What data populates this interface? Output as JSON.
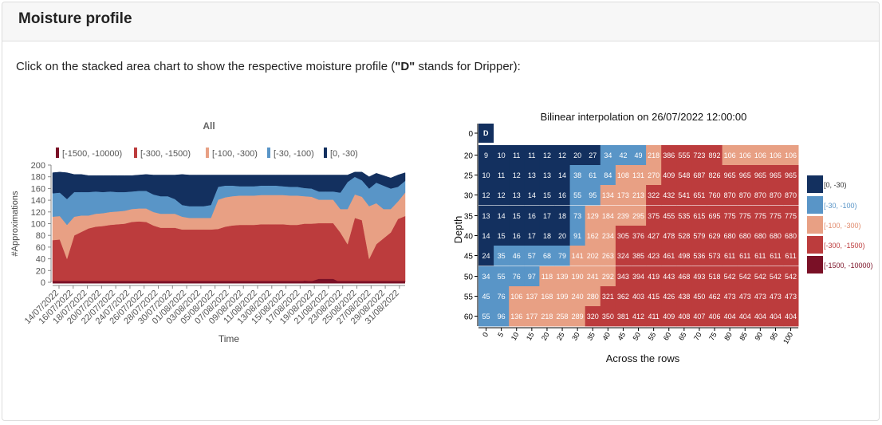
{
  "card": {
    "title": "Moisture profile",
    "instruction_before": "Click on the stacked area chart to show the respective moisture profile (",
    "instruction_bold": "\"D\"",
    "instruction_after": " stands for Dripper):"
  },
  "colors": {
    "c0": "#13305f",
    "c1": "#5995c7",
    "c2": "#e8a084",
    "c3": "#bc3c3d",
    "c4": "#7a1026"
  },
  "chart_data": [
    {
      "type": "area",
      "stacked": true,
      "title": "All",
      "xlabel": "Time",
      "ylabel": "#Approximations",
      "ylim": [
        0,
        200
      ],
      "yticks": [
        0,
        20,
        40,
        60,
        80,
        100,
        120,
        140,
        160,
        180,
        200
      ],
      "xticks": [
        "14/07/2022",
        "16/07/2022",
        "18/07/2022",
        "20/07/2022",
        "22/07/2022",
        "24/07/2022",
        "26/07/2022",
        "28/07/2022",
        "30/07/2022",
        "01/08/2022",
        "03/08/2022",
        "05/08/2022",
        "07/08/2022",
        "09/08/2022",
        "11/08/2022",
        "13/08/2022",
        "15/08/2022",
        "17/08/2022",
        "19/08/2022",
        "21/08/2022",
        "23/08/2022",
        "25/08/2022",
        "27/08/2022",
        "29/08/2022",
        "31/08/2022"
      ],
      "legend_placement": "top",
      "x": [
        "14/07",
        "15/07",
        "16/07",
        "17/07",
        "18/07",
        "19/07",
        "20/07",
        "21/07",
        "22/07",
        "23/07",
        "24/07",
        "25/07",
        "26/07",
        "27/07",
        "28/07",
        "29/07",
        "30/07",
        "31/07",
        "01/08",
        "02/08",
        "03/08",
        "04/08",
        "05/08",
        "06/08",
        "07/08",
        "08/08",
        "09/08",
        "10/08",
        "11/08",
        "12/08",
        "13/08",
        "14/08",
        "15/08",
        "16/08",
        "17/08",
        "18/08",
        "19/08",
        "20/08",
        "21/08",
        "22/08",
        "23/08",
        "24/08",
        "25/08",
        "26/08",
        "27/08",
        "28/08",
        "29/08",
        "30/08",
        "31/08",
        "01/09"
      ],
      "series": [
        {
          "name": "[-1500, -10000)",
          "values": [
            0,
            0,
            0,
            0,
            0,
            0,
            0,
            0,
            0,
            0,
            0,
            0,
            0,
            0,
            0,
            0,
            0,
            0,
            0,
            0,
            0,
            0,
            0,
            0,
            0,
            0,
            0,
            0,
            0,
            0,
            0,
            0,
            0,
            0,
            0,
            3,
            2,
            6,
            6,
            6,
            0,
            0,
            0,
            0,
            0,
            0,
            0,
            0,
            0,
            0
          ]
        },
        {
          "name": "[-300, -1500)",
          "values": [
            72,
            73,
            40,
            80,
            86,
            92,
            95,
            96,
            98,
            99,
            100,
            103,
            104,
            103,
            97,
            93,
            93,
            93,
            90,
            90,
            90,
            90,
            90,
            91,
            95,
            97,
            98,
            98,
            98,
            99,
            99,
            99,
            99,
            98,
            98,
            97,
            98,
            95,
            95,
            95,
            85,
            65,
            110,
            106,
            40,
            65,
            75,
            85,
            108,
            113
          ]
        },
        {
          "name": "[-100, -300)",
          "values": [
            40,
            40,
            58,
            32,
            28,
            22,
            22,
            22,
            22,
            22,
            22,
            22,
            22,
            23,
            23,
            24,
            24,
            24,
            22,
            20,
            20,
            20,
            20,
            50,
            50,
            50,
            50,
            50,
            50,
            50,
            50,
            50,
            50,
            50,
            50,
            47,
            46,
            40,
            40,
            40,
            40,
            60,
            40,
            40,
            90,
            70,
            50,
            40,
            30,
            40
          ]
        },
        {
          "name": "[-30, -100)",
          "values": [
            40,
            40,
            44,
            42,
            40,
            40,
            38,
            36,
            35,
            33,
            32,
            30,
            30,
            30,
            30,
            30,
            30,
            25,
            20,
            20,
            20,
            20,
            22,
            22,
            20,
            18,
            16,
            16,
            16,
            16,
            16,
            16,
            15,
            15,
            15,
            14,
            14,
            14,
            14,
            14,
            28,
            46,
            30,
            28,
            30,
            35,
            40,
            35,
            25,
            20
          ]
        },
        {
          "name": "[0, -30)",
          "values": [
            35,
            35,
            45,
            30,
            30,
            28,
            27,
            28,
            27,
            28,
            28,
            27,
            27,
            28,
            33,
            36,
            36,
            41,
            52,
            53,
            53,
            53,
            51,
            20,
            18,
            18,
            19,
            19,
            19,
            18,
            18,
            18,
            19,
            20,
            20,
            22,
            23,
            28,
            28,
            28,
            30,
            12,
            8,
            14,
            20,
            16,
            17,
            18,
            20,
            14
          ]
        }
      ]
    },
    {
      "type": "heatmap",
      "title": "Bilinear interpolation on 26/07/2022 12:00:00",
      "xlabel": "Across the rows",
      "ylabel": "Depth",
      "x": [
        0,
        5,
        10,
        15,
        20,
        25,
        30,
        35,
        40,
        45,
        50,
        55,
        60,
        65,
        70,
        75,
        80,
        85,
        90,
        95,
        100
      ],
      "y": [
        0,
        20,
        25,
        30,
        35,
        40,
        45,
        50,
        55,
        60
      ],
      "dripper_label": "D",
      "rows": [
        [
          null,
          null,
          null,
          null,
          null,
          null,
          null,
          null,
          null,
          null,
          null,
          null,
          null,
          null,
          null,
          null,
          null,
          null,
          null,
          null,
          null
        ],
        [
          9,
          10,
          11,
          11,
          12,
          12,
          20,
          27,
          34,
          42,
          49,
          218,
          386,
          555,
          723,
          892,
          106,
          106,
          106,
          106,
          106
        ],
        [
          10,
          11,
          12,
          13,
          13,
          14,
          38,
          61,
          84,
          108,
          131,
          270,
          409,
          548,
          687,
          826,
          965,
          965,
          965,
          965,
          965
        ],
        [
          12,
          12,
          13,
          14,
          15,
          16,
          55,
          95,
          134,
          173,
          213,
          322,
          432,
          541,
          651,
          760,
          870,
          870,
          870,
          870,
          870
        ],
        [
          13,
          14,
          15,
          16,
          17,
          18,
          73,
          129,
          184,
          239,
          295,
          375,
          455,
          535,
          615,
          695,
          775,
          775,
          775,
          775,
          775
        ],
        [
          14,
          15,
          16,
          17,
          18,
          20,
          91,
          162,
          234,
          305,
          376,
          427,
          478,
          528,
          579,
          629,
          680,
          680,
          680,
          680,
          680
        ],
        [
          24,
          35,
          46,
          57,
          68,
          79,
          141,
          202,
          263,
          324,
          385,
          423,
          461,
          498,
          536,
          573,
          611,
          611,
          611,
          611,
          611
        ],
        [
          34,
          55,
          76,
          97,
          118,
          139,
          190,
          241,
          292,
          343,
          394,
          419,
          443,
          468,
          493,
          518,
          542,
          542,
          542,
          542,
          542
        ],
        [
          45,
          76,
          106,
          137,
          168,
          199,
          240,
          280,
          321,
          362,
          403,
          415,
          426,
          438,
          450,
          462,
          473,
          473,
          473,
          473,
          473
        ],
        [
          55,
          96,
          136,
          177,
          218,
          258,
          289,
          320,
          350,
          381,
          412,
          411,
          409,
          408,
          407,
          406,
          404,
          404,
          404,
          404,
          404
        ]
      ],
      "legend": [
        "[0, -30)",
        "[-30, -100)",
        "[-100, -300)",
        "[-300, -1500)",
        "[-1500, -10000)"
      ]
    }
  ]
}
